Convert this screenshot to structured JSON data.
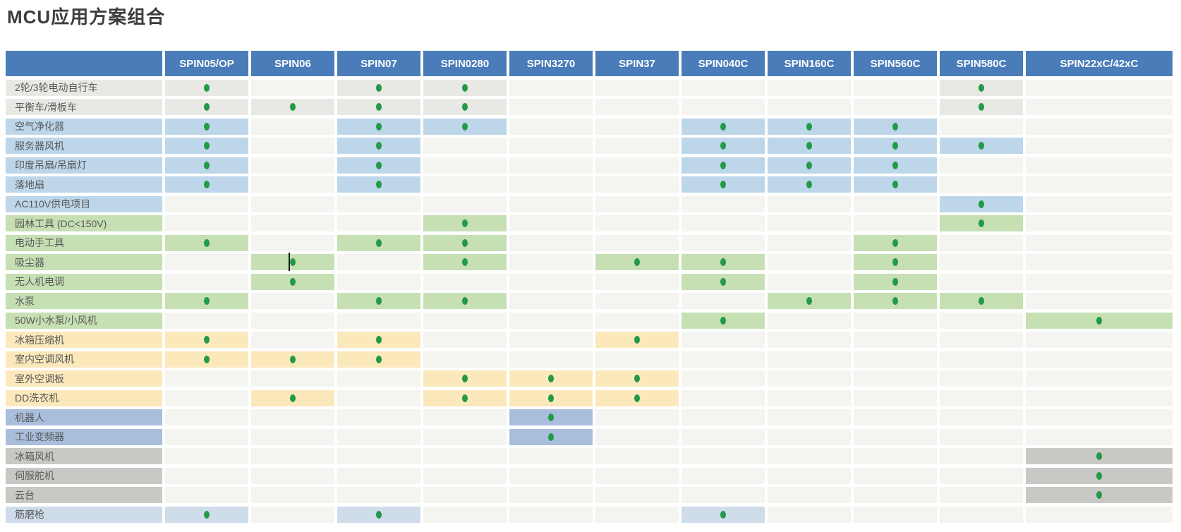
{
  "title": "MCU应用方案组合",
  "colors": {
    "header_bg": "#4a7cb9",
    "header_text": "#ffffff",
    "title_text": "#3d3d3d",
    "label_text": "#595959",
    "empty_cell": "#f4f4f1",
    "dot": "#239a47",
    "groups": {
      "gray_light": "#e8e8e5",
      "blue": "#bdd6ea",
      "green": "#c6dfb3",
      "yellow": "#fbe8bb",
      "periwinkle": "#a9bedd",
      "gray": "#c8c8c5",
      "bluegray": "#cfdcea"
    }
  },
  "chart_data": {
    "type": "table",
    "title": "MCU应用方案组合",
    "columns": [
      "SPIN05/OP",
      "SPIN06",
      "SPIN07",
      "SPIN0280",
      "SPIN3270",
      "SPIN37",
      "SPIN040C",
      "SPIN160C",
      "SPIN560C",
      "SPIN580C",
      "SPIN22xC/42xC"
    ],
    "corner_label": "",
    "dot_meaning": "green-dot",
    "rows": [
      {
        "label": "2轮/3轮电动自行车",
        "group": "gray_light",
        "dots": [
          1,
          0,
          1,
          1,
          0,
          0,
          0,
          0,
          0,
          1,
          0
        ]
      },
      {
        "label": "平衡车/滑板车",
        "group": "gray_light",
        "dots": [
          1,
          1,
          1,
          1,
          0,
          0,
          0,
          0,
          0,
          1,
          0
        ]
      },
      {
        "label": "空气净化器",
        "group": "blue",
        "dots": [
          1,
          0,
          1,
          1,
          0,
          0,
          1,
          1,
          1,
          0,
          0
        ]
      },
      {
        "label": "服务器风机",
        "group": "blue",
        "dots": [
          1,
          0,
          1,
          0,
          0,
          0,
          1,
          1,
          1,
          1,
          0
        ]
      },
      {
        "label": "印度吊扇/吊扇灯",
        "group": "blue",
        "dots": [
          1,
          0,
          1,
          0,
          0,
          0,
          1,
          1,
          1,
          0,
          0
        ]
      },
      {
        "label": "落地扇",
        "group": "blue",
        "dots": [
          1,
          0,
          1,
          0,
          0,
          0,
          1,
          1,
          1,
          0,
          0
        ]
      },
      {
        "label": "AC110V供电项目",
        "group": "blue",
        "dots": [
          0,
          0,
          0,
          0,
          0,
          0,
          0,
          0,
          0,
          1,
          0
        ]
      },
      {
        "label": "园林工具 (DC<150V)",
        "group": "green",
        "dots": [
          0,
          0,
          0,
          1,
          0,
          0,
          0,
          0,
          0,
          1,
          0
        ]
      },
      {
        "label": "电动手工具",
        "group": "green",
        "dots": [
          1,
          0,
          1,
          1,
          0,
          0,
          0,
          0,
          1,
          0,
          0
        ]
      },
      {
        "label": "吸尘器",
        "group": "green",
        "dots": [
          0,
          1,
          0,
          1,
          0,
          1,
          1,
          0,
          1,
          0,
          0
        ]
      },
      {
        "label": "无人机电调",
        "group": "green",
        "dots": [
          0,
          1,
          0,
          0,
          0,
          0,
          1,
          0,
          1,
          0,
          0
        ]
      },
      {
        "label": "水泵",
        "group": "green",
        "dots": [
          1,
          0,
          1,
          1,
          0,
          0,
          0,
          1,
          1,
          1,
          0
        ]
      },
      {
        "label": "50W小水泵/小风机",
        "group": "green",
        "dots": [
          0,
          0,
          0,
          0,
          0,
          0,
          1,
          0,
          0,
          0,
          1
        ]
      },
      {
        "label": "冰箱压缩机",
        "group": "yellow",
        "dots": [
          1,
          0,
          1,
          0,
          0,
          1,
          0,
          0,
          0,
          0,
          0
        ]
      },
      {
        "label": "室内空调风机",
        "group": "yellow",
        "dots": [
          1,
          1,
          1,
          0,
          0,
          0,
          0,
          0,
          0,
          0,
          0
        ]
      },
      {
        "label": "室外空调板",
        "group": "yellow",
        "dots": [
          0,
          0,
          0,
          1,
          1,
          1,
          0,
          0,
          0,
          0,
          0
        ]
      },
      {
        "label": "DD洗衣机",
        "group": "yellow",
        "dots": [
          0,
          1,
          0,
          1,
          1,
          1,
          0,
          0,
          0,
          0,
          0
        ]
      },
      {
        "label": "机器人",
        "group": "periwinkle",
        "dots": [
          0,
          0,
          0,
          0,
          1,
          0,
          0,
          0,
          0,
          0,
          0
        ]
      },
      {
        "label": "工业变频器",
        "group": "periwinkle",
        "dots": [
          0,
          0,
          0,
          0,
          1,
          0,
          0,
          0,
          0,
          0,
          0
        ]
      },
      {
        "label": "冰箱风机",
        "group": "gray",
        "dots": [
          0,
          0,
          0,
          0,
          0,
          0,
          0,
          0,
          0,
          0,
          1
        ]
      },
      {
        "label": "伺服舵机",
        "group": "gray",
        "dots": [
          0,
          0,
          0,
          0,
          0,
          0,
          0,
          0,
          0,
          0,
          1
        ]
      },
      {
        "label": "云台",
        "group": "gray",
        "dots": [
          0,
          0,
          0,
          0,
          0,
          0,
          0,
          0,
          0,
          0,
          1
        ]
      },
      {
        "label": "筋磨枪",
        "group": "bluegray",
        "dots": [
          1,
          0,
          1,
          0,
          0,
          0,
          1,
          0,
          0,
          0,
          0
        ]
      }
    ]
  },
  "cursor_artifact": {
    "row_index": 9,
    "col_index": 1
  }
}
